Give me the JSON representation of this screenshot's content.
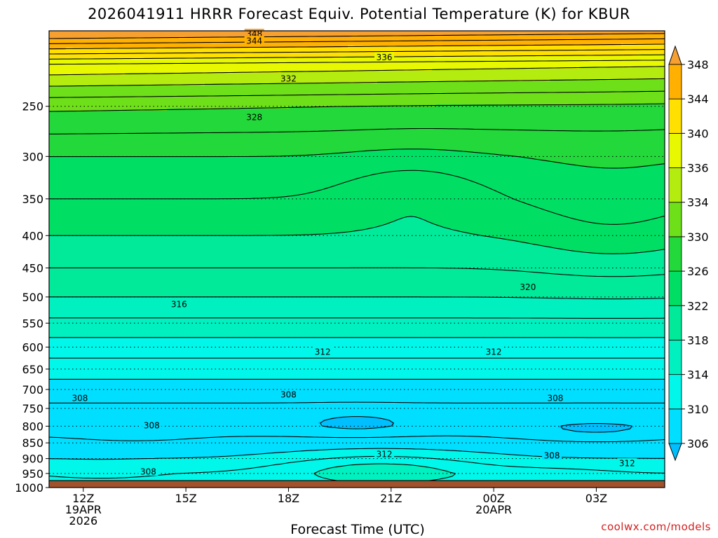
{
  "title": "2026041911 HRRR Forecast Equiv. Potential Temperature (K) for KBUR",
  "credit": "coolwx.com/models",
  "chart_data": {
    "type": "heatmap",
    "title": "2026041911 HRRR Forecast Equiv. Potential Temperature (K) for KBUR",
    "xlabel": "Forecast Time (UTC)",
    "ylabel": "",
    "y_axis": {
      "scale": "log",
      "inverted": true,
      "range": [
        1000,
        190
      ],
      "unit": "hPa",
      "ticks": [
        250,
        300,
        350,
        400,
        450,
        500,
        550,
        600,
        650,
        700,
        750,
        800,
        850,
        900,
        950,
        1000
      ]
    },
    "x_axis": {
      "range": [
        11,
        29
      ],
      "unit": "hour UTC (from 19APR 00Z)",
      "ticks": [
        {
          "x": 12,
          "lines": [
            "12Z",
            "19APR",
            "2026"
          ]
        },
        {
          "x": 15,
          "lines": [
            "15Z"
          ]
        },
        {
          "x": 18,
          "lines": [
            "18Z"
          ]
        },
        {
          "x": 21,
          "lines": [
            "21Z"
          ]
        },
        {
          "x": 24,
          "lines": [
            "00Z",
            "20APR"
          ]
        },
        {
          "x": 27,
          "lines": [
            "03Z"
          ]
        }
      ]
    },
    "grid": "dotted horizontal at pressure ticks",
    "surface_ground_pressure": 975,
    "colorbar": {
      "labels": [
        306,
        310,
        314,
        318,
        322,
        326,
        330,
        334,
        336,
        340,
        344,
        348
      ],
      "colors": [
        "#00bfff",
        "#00dfff",
        "#00f7ea",
        "#00f0c0",
        "#00ea9a",
        "#00df64",
        "#22d83a",
        "#6ee01a",
        "#b4ec10",
        "#e8f800",
        "#ffe000",
        "#ffb000",
        "#f5a030"
      ],
      "extend": "both"
    },
    "contour_levels": [
      306,
      308,
      310,
      312,
      314,
      316,
      318,
      320,
      322,
      324,
      326,
      328,
      330,
      332,
      334,
      336,
      338,
      340,
      342,
      344,
      346,
      348
    ],
    "contour_labels": [
      {
        "value": 348,
        "x": 17.0,
        "p": 192
      },
      {
        "value": 344,
        "x": 17.0,
        "p": 197
      },
      {
        "value": 336,
        "x": 20.8,
        "p": 209
      },
      {
        "value": 332,
        "x": 18.0,
        "p": 226
      },
      {
        "value": 328,
        "x": 17.0,
        "p": 260
      },
      {
        "value": 320,
        "x": 25.0,
        "p": 482
      },
      {
        "value": 316,
        "x": 14.8,
        "p": 513
      },
      {
        "value": 312,
        "x": 19.0,
        "p": 610
      },
      {
        "value": 312,
        "x": 24.0,
        "p": 610
      },
      {
        "value": 308,
        "x": 18.0,
        "p": 713
      },
      {
        "value": 308,
        "x": 11.9,
        "p": 722
      },
      {
        "value": 308,
        "x": 25.8,
        "p": 722
      },
      {
        "value": 308,
        "x": 14.0,
        "p": 797
      },
      {
        "value": 312,
        "x": 20.8,
        "p": 885
      },
      {
        "value": 308,
        "x": 25.7,
        "p": 890
      },
      {
        "value": 312,
        "x": 27.9,
        "p": 915
      },
      {
        "value": 308,
        "x": 13.9,
        "p": 943
      }
    ]
  }
}
